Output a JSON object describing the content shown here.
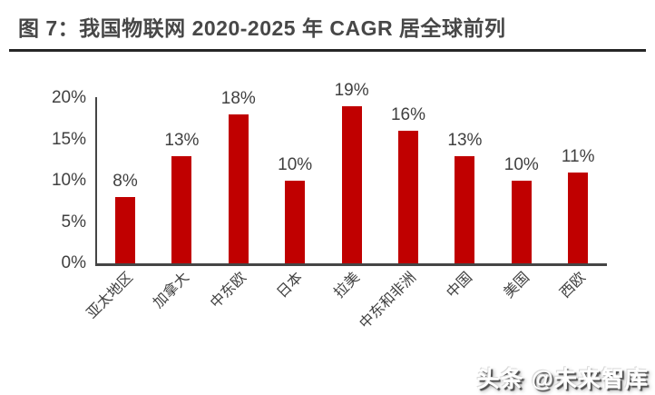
{
  "header": {
    "title": "图 7：我国物联网 2020-2025 年 CAGR 居全球前列"
  },
  "watermark": {
    "text": "头条 @未来智库"
  },
  "colors": {
    "bar": "#C00000",
    "axis": "#454545",
    "label": "#404040",
    "title": "#474747",
    "underline": "#262626"
  },
  "chart_data": {
    "type": "bar",
    "title": "图 7：我国物联网 2020-2025 年 CAGR 居全球前列",
    "categories": [
      "亚太地区",
      "加拿大",
      "中东欧",
      "日本",
      "拉美",
      "中东和非洲",
      "中国",
      "美国",
      "西欧"
    ],
    "values": [
      8,
      13,
      18,
      10,
      19,
      16,
      13,
      10,
      11
    ],
    "data_labels": [
      "8%",
      "13%",
      "18%",
      "10%",
      "19%",
      "16%",
      "13%",
      "10%",
      "11%"
    ],
    "unit": "%",
    "xlabel": "",
    "ylabel": "",
    "ylim": [
      0,
      20
    ],
    "yticks": [
      0,
      5,
      10,
      15,
      20
    ],
    "ytick_labels": [
      "0%",
      "5%",
      "10%",
      "15%",
      "20%"
    ],
    "grid": false,
    "legend": "none",
    "bar_color": "#C00000",
    "label_rotation_deg": -45
  }
}
